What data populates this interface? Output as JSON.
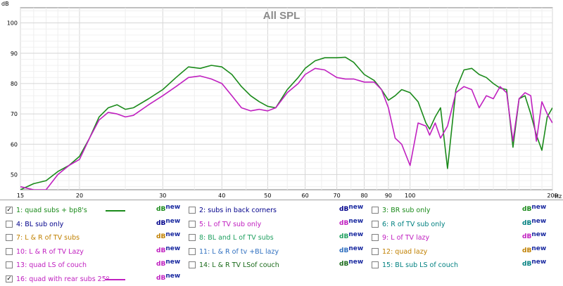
{
  "chart_data": {
    "type": "line",
    "title": "All SPL",
    "ylabel": "dB",
    "xlabel": "Hz",
    "xscale": "log",
    "xlim": [
      15,
      200
    ],
    "ylim": [
      45,
      105
    ],
    "yticks": [
      100,
      90,
      80,
      70,
      60,
      50
    ],
    "xticks": [
      15,
      20,
      30,
      40,
      50,
      60,
      70,
      80,
      90,
      100,
      200
    ],
    "xtick_labels": [
      "15",
      "20",
      "30",
      "40",
      "50",
      "60",
      "70",
      "80",
      "90",
      "100",
      "200"
    ],
    "grid": true,
    "series": [
      {
        "name": "1: quad subs + bp8's",
        "color": "#1a8a1a",
        "x": [
          15,
          16,
          17,
          18,
          19,
          20,
          21,
          22,
          23,
          24,
          25,
          26,
          28,
          30,
          32,
          34,
          36,
          38,
          40,
          42,
          44,
          46,
          48,
          50,
          52,
          55,
          58,
          60,
          63,
          66,
          70,
          73,
          76,
          80,
          84,
          87,
          90,
          93,
          96,
          100,
          104,
          108,
          110,
          113,
          116,
          120,
          125,
          130,
          135,
          140,
          145,
          150,
          155,
          160,
          165,
          170,
          175,
          180,
          185,
          190,
          195,
          200
        ],
        "y": [
          44,
          47,
          48,
          51,
          53,
          56,
          62,
          69,
          72,
          73,
          71.5,
          72,
          75,
          78,
          82,
          85.5,
          85,
          86,
          85.5,
          83,
          79,
          76,
          74,
          72.5,
          72,
          78,
          82,
          85,
          87.5,
          88.5,
          88.5,
          88.7,
          87,
          83,
          81,
          78,
          74.5,
          76,
          78,
          77,
          74,
          67,
          65,
          69,
          72,
          52,
          78,
          84.5,
          85,
          83,
          82,
          80,
          78.5,
          78,
          59,
          75,
          76,
          70,
          63,
          58,
          69,
          72
        ],
        "legend_label": "1: quad subs + bp8's"
      },
      {
        "name": "16: quad with rear subs 25º",
        "color": "#c020c0",
        "x": [
          15,
          16,
          17,
          18,
          19,
          20,
          21,
          22,
          23,
          24,
          25,
          26,
          28,
          30,
          32,
          34,
          36,
          38,
          40,
          42,
          44,
          46,
          48,
          50,
          52,
          55,
          58,
          60,
          63,
          66,
          70,
          73,
          76,
          80,
          84,
          87,
          90,
          93,
          96,
          100,
          104,
          108,
          110,
          113,
          116,
          120,
          125,
          130,
          135,
          140,
          145,
          150,
          155,
          160,
          165,
          170,
          175,
          180,
          185,
          190,
          195,
          200
        ],
        "y": [
          46,
          45,
          44,
          50,
          53,
          55,
          62,
          68,
          70.5,
          70,
          69,
          69.5,
          73,
          76,
          79,
          82,
          82.5,
          81.5,
          80,
          76,
          72,
          71,
          71.5,
          71,
          72,
          77,
          80,
          83,
          85,
          84.5,
          82,
          81.5,
          81.5,
          80.5,
          80.5,
          78,
          72,
          62,
          60,
          53,
          67,
          66,
          63,
          67,
          62,
          66,
          77,
          79,
          78,
          72,
          76,
          75,
          79,
          77,
          61,
          75,
          77,
          76,
          61,
          74,
          70,
          67
        ]
      }
    ]
  },
  "legend": {
    "dbnew_label": "dBnew",
    "entries": [
      {
        "label": "1: quad subs + bp8's",
        "checked": true,
        "color": "#1a8a1a",
        "show_swatch": true
      },
      {
        "label": "2: subs in back corners",
        "checked": false,
        "color": "#00008b"
      },
      {
        "label": "3: BR sub only",
        "checked": false,
        "color": "#1a8a1a"
      },
      {
        "label": "4: BL sub only",
        "checked": false,
        "color": "#00008b"
      },
      {
        "label": "5: L of TV sub only",
        "checked": false,
        "color": "#c020c0"
      },
      {
        "label": "6: R of TV sub only",
        "checked": false,
        "color": "#008080"
      },
      {
        "label": "7: L & R of TV subs",
        "checked": false,
        "color": "#c08000"
      },
      {
        "label": "8: BL and L of TV subs",
        "checked": false,
        "color": "#20a060"
      },
      {
        "label": "9: L of TV lazy",
        "checked": false,
        "color": "#c020c0"
      },
      {
        "label": "10: L & R of TV Lazy",
        "checked": false,
        "color": "#c020c0"
      },
      {
        "label": "11: L & R of tv +BL lazy",
        "checked": false,
        "color": "#3070c0"
      },
      {
        "label": "12: quad lazy",
        "checked": false,
        "color": "#c08000"
      },
      {
        "label": "13: quad LS of couch",
        "checked": false,
        "color": "#c020c0"
      },
      {
        "label": "14: L & R TV LSof couch",
        "checked": false,
        "color": "#1a6a1a"
      },
      {
        "label": "15: BL sub LS of couch",
        "checked": false,
        "color": "#008080"
      },
      {
        "label": "16: quad with rear subs 25º",
        "checked": true,
        "color": "#c020c0",
        "show_swatch": true
      }
    ]
  }
}
